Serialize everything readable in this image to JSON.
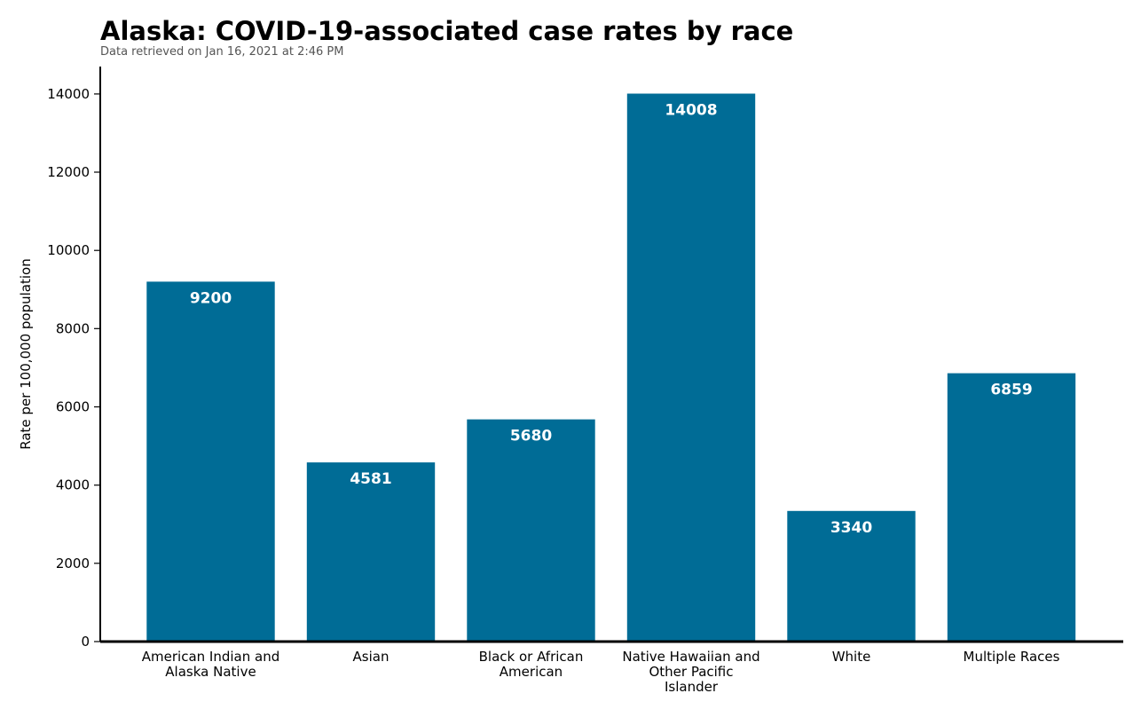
{
  "chart_data": {
    "type": "bar",
    "title": "Alaska: COVID-19-associated case rates by race",
    "subtitle": "Data retrieved on Jan 16, 2021 at 2:46 PM",
    "xlabel": "",
    "ylabel": "Rate per 100,000 population",
    "categories": [
      [
        "American Indian and",
        "Alaska Native"
      ],
      [
        "Asian"
      ],
      [
        "Black or African",
        "American"
      ],
      [
        "Native Hawaiian and",
        "Other Pacific",
        "Islander"
      ],
      [
        "White"
      ],
      [
        "Multiple Races"
      ]
    ],
    "values": [
      9200,
      4581,
      5680,
      14008,
      3340,
      6859
    ],
    "data_labels": [
      "9200",
      "4581",
      "5680",
      "14008",
      "3340",
      "6859"
    ],
    "ylim": [
      0,
      14700
    ],
    "yticks": [
      0,
      2000,
      4000,
      6000,
      8000,
      10000,
      12000,
      14000
    ],
    "ytick_labels": [
      "0",
      "2000",
      "4000",
      "6000",
      "8000",
      "10000",
      "12000",
      "14000"
    ],
    "grid": false,
    "legend": "none",
    "bar_color": "#006c96"
  }
}
